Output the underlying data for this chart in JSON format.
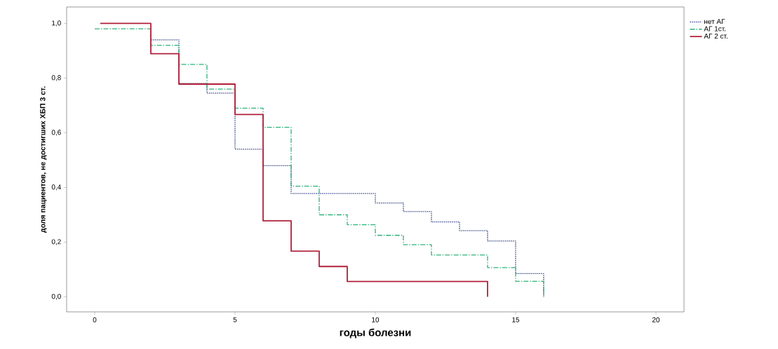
{
  "chart_data": {
    "type": "step",
    "xlabel": "годы болезни",
    "ylabel": "доля пациентов, не достигших ХБП 3 ст.",
    "xlim": [
      -1,
      21
    ],
    "ylim": [
      -0.055,
      1.06
    ],
    "xticks": [
      0,
      5,
      10,
      15,
      20
    ],
    "yticks": [
      {
        "value": 0,
        "label": "0,0"
      },
      {
        "value": 0.2,
        "label": "0,2"
      },
      {
        "value": 0.4,
        "label": "0,4"
      },
      {
        "value": 0.6,
        "label": "0,6"
      },
      {
        "value": 0.8,
        "label": "0,8"
      },
      {
        "value": 1.0,
        "label": "1,0"
      }
    ],
    "grid": false,
    "legend": "top right",
    "marker": "none",
    "series": [
      {
        "name": "нет АГ",
        "color": "#3b4a8c",
        "line_style": "dotted",
        "x": [
          2,
          3,
          4,
          5,
          6,
          7,
          10,
          11,
          12,
          13,
          14,
          15,
          16
        ],
        "values": [
          0.94,
          0.78,
          0.745,
          0.54,
          0.48,
          0.378,
          0.343,
          0.312,
          0.274,
          0.242,
          0.204,
          0.085,
          0
        ]
      },
      {
        "name": "АГ 1ст.",
        "color": "#2db37a",
        "line_style": "dashed",
        "x": [
          0,
          2,
          3,
          4,
          5,
          6,
          7,
          8,
          9,
          10,
          11,
          12,
          14,
          15,
          16
        ],
        "values": [
          0.98,
          0.92,
          0.85,
          0.76,
          0.69,
          0.62,
          0.405,
          0.3,
          0.264,
          0.225,
          0.191,
          0.153,
          0.107,
          0.057,
          0
        ]
      },
      {
        "name": "АГ 2 ст.",
        "color": "#b0203a",
        "line_style": "solid",
        "x": [
          0.2,
          2,
          3,
          5,
          6,
          7,
          8,
          9,
          14
        ],
        "values": [
          1,
          0.889,
          0.778,
          0.667,
          0.278,
          0.167,
          0.111,
          0.056,
          0
        ]
      }
    ]
  }
}
